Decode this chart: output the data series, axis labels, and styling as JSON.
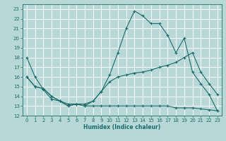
{
  "xlabel": "Humidex (Indice chaleur)",
  "xlim": [
    -0.5,
    23.5
  ],
  "ylim": [
    12,
    23.5
  ],
  "yticks": [
    12,
    13,
    14,
    15,
    16,
    17,
    18,
    19,
    20,
    21,
    22,
    23
  ],
  "xticks": [
    0,
    1,
    2,
    3,
    4,
    5,
    6,
    7,
    8,
    9,
    10,
    11,
    12,
    13,
    14,
    15,
    16,
    17,
    18,
    19,
    20,
    21,
    22,
    23
  ],
  "background_color": "#b8d8d8",
  "grid_color": "#d4ecec",
  "line_color": "#1a6b6b",
  "line1_x": [
    0,
    1,
    2,
    3,
    4,
    5,
    6,
    7,
    8,
    9,
    10,
    11,
    12,
    13,
    14,
    15,
    16,
    17,
    18,
    19,
    20,
    21,
    22,
    23
  ],
  "line1_y": [
    18.0,
    16.0,
    14.7,
    13.7,
    13.5,
    13.0,
    13.2,
    13.0,
    13.5,
    14.5,
    16.2,
    18.5,
    21.0,
    22.8,
    22.3,
    21.5,
    21.5,
    20.3,
    18.5,
    20.0,
    16.5,
    15.3,
    14.2,
    12.5
  ],
  "line2_x": [
    0,
    1,
    2,
    3,
    4,
    5,
    6,
    7,
    8,
    9,
    10,
    11,
    12,
    13,
    14,
    15,
    16,
    17,
    18,
    19,
    20,
    21,
    22,
    23
  ],
  "line2_y": [
    16.0,
    15.0,
    14.8,
    14.0,
    13.5,
    13.2,
    13.2,
    13.2,
    13.5,
    14.5,
    15.5,
    16.0,
    16.2,
    16.4,
    16.5,
    16.7,
    17.0,
    17.2,
    17.5,
    18.0,
    18.5,
    16.5,
    15.3,
    14.2
  ],
  "line3_x": [
    0,
    1,
    2,
    3,
    4,
    5,
    6,
    7,
    8,
    9,
    10,
    11,
    12,
    13,
    14,
    15,
    16,
    17,
    18,
    19,
    20,
    21,
    22,
    23
  ],
  "line3_y": [
    16.0,
    15.0,
    14.8,
    14.0,
    13.5,
    13.0,
    13.2,
    13.0,
    13.0,
    13.0,
    13.0,
    13.0,
    13.0,
    13.0,
    13.0,
    13.0,
    13.0,
    13.0,
    12.8,
    12.8,
    12.8,
    12.7,
    12.6,
    12.5
  ]
}
